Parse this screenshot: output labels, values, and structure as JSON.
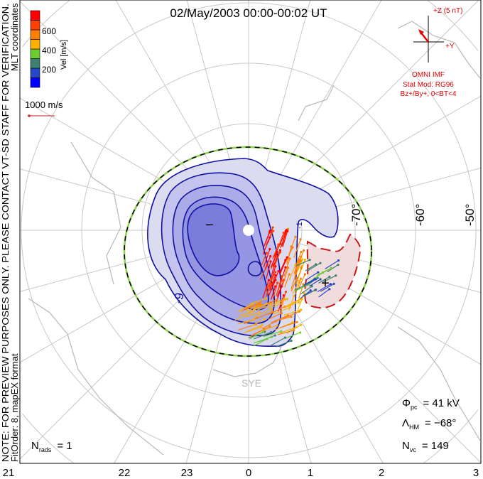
{
  "title": "02/May/2003 00:00-00:02 UT",
  "side_note": "NOTE: FOR PREVIEW PURPOSES ONLY. PLEASE CONTACT VT-SD STAFF FOR VERIFICATION.",
  "coord_label": "MLT coordinates",
  "fit_label": "FitOrder: 8, mapEX format",
  "colorbar": {
    "title": "Vel [m/s]",
    "ticks": [
      "600",
      "400",
      "200"
    ],
    "colors": [
      "#0000ff",
      "#2848c8",
      "#3c8070",
      "#6ccc30",
      "#ffb000",
      "#ff8000",
      "#ff4000",
      "#ff0000"
    ]
  },
  "scale_vector": {
    "label": "1000 m/s",
    "color": "#d02020"
  },
  "imf": {
    "z_label": "+Z (5 nT)",
    "y_label": "+Y",
    "source": "OMNI IMF",
    "model": "Stat Mod: RG96",
    "condition": "Bz+/By+, 0<BT<4",
    "color": "#e00000"
  },
  "lat_labels": [
    "-70°",
    "-60°",
    "-50°"
  ],
  "mlt_labels": [
    "21",
    "22",
    "23",
    "0",
    "1",
    "2",
    "3"
  ],
  "contour_labels": {
    "minus": "−",
    "plus": "+",
    "neg9": "-9",
    "neg1": "-1"
  },
  "station_label": "SYE",
  "stats": {
    "phi_pc": {
      "sym": "Φ",
      "sub": "pc",
      "value": "= 41 kV"
    },
    "lambda_hm": {
      "sym": "Λ",
      "sub": "HM",
      "value": "= −68°"
    },
    "n_vc": {
      "sym": "N",
      "sub": "vc",
      "value": "= 149"
    },
    "n_rads": {
      "sym": "N",
      "sub": "rads",
      "value": "= 1"
    }
  }
}
